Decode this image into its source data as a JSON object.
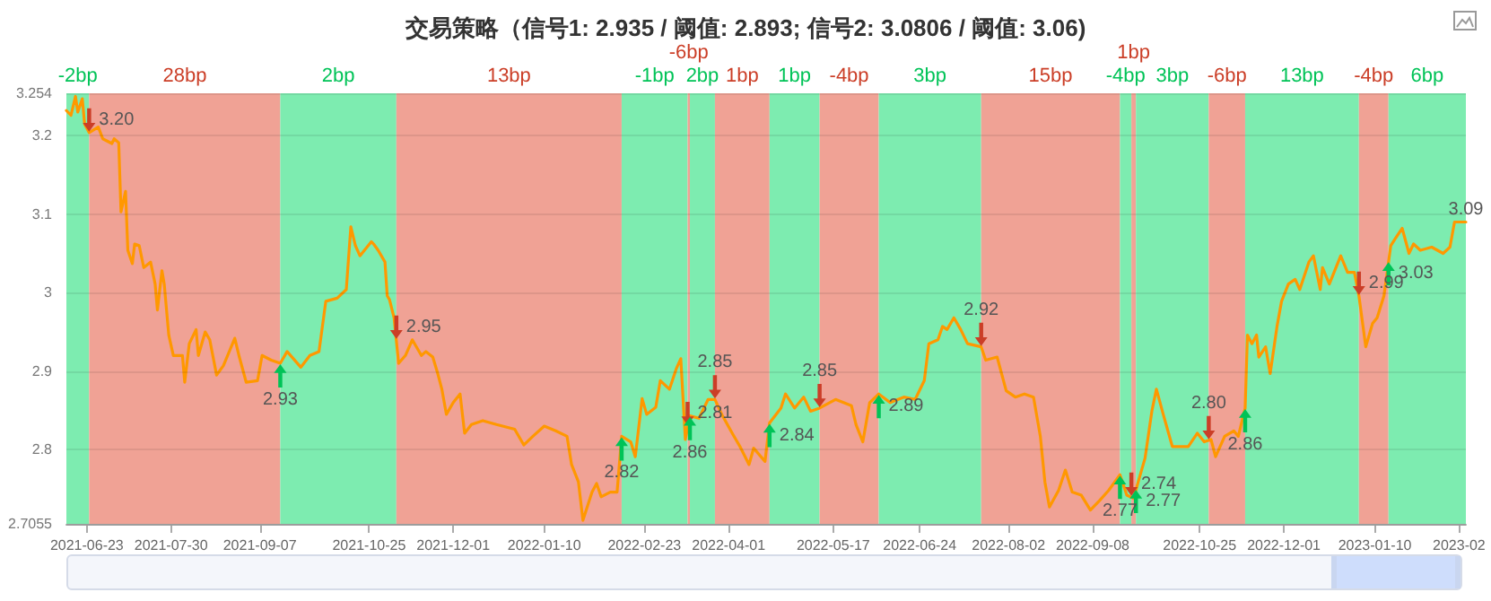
{
  "chart_data": {
    "type": "line",
    "title": "交易策略（信号1: 2.935 / 阈值: 2.893; 信号2: 3.0806 / 阈值: 3.06)",
    "x": [
      "2021-06-14",
      "2021-06-16",
      "2021-06-18",
      "2021-06-19",
      "2021-06-21",
      "2021-06-22",
      "2021-06-24",
      "2021-06-28",
      "2021-06-30",
      "2021-07-04",
      "2021-07-05",
      "2021-07-07",
      "2021-07-08",
      "2021-07-10",
      "2021-07-11",
      "2021-07-13",
      "2021-07-14",
      "2021-07-16",
      "2021-07-18",
      "2021-07-21",
      "2021-07-23",
      "2021-07-24",
      "2021-07-26",
      "2021-07-27",
      "2021-07-29",
      "2021-07-31",
      "2021-08-04",
      "2021-08-05",
      "2021-08-07",
      "2021-08-10",
      "2021-08-11",
      "2021-08-14",
      "2021-08-16",
      "2021-08-19",
      "2021-08-22",
      "2021-08-27",
      "2021-08-29",
      "2021-09-01",
      "2021-09-06",
      "2021-09-08",
      "2021-09-12",
      "2021-09-16",
      "2021-09-19",
      "2021-09-25",
      "2021-09-29",
      "2021-10-03",
      "2021-10-06",
      "2021-10-11",
      "2021-10-15",
      "2021-10-17",
      "2021-10-19",
      "2021-10-21",
      "2021-10-26",
      "2021-10-27",
      "2021-10-29",
      "2021-11-01",
      "2021-11-02",
      "2021-11-03",
      "2021-11-05",
      "2021-11-07",
      "2021-11-10",
      "2021-11-13",
      "2021-11-17",
      "2021-11-19",
      "2021-11-22",
      "2021-11-24",
      "2021-11-26",
      "2021-11-28",
      "2021-12-01",
      "2021-12-04",
      "2021-12-06",
      "2021-12-09",
      "2021-12-14",
      "2021-12-20",
      "2021-12-28",
      "2022-01-01",
      "2022-01-05",
      "2022-01-10",
      "2022-01-15",
      "2022-01-20",
      "2022-01-22",
      "2022-01-25",
      "2022-01-27",
      "2022-01-31",
      "2022-02-02",
      "2022-02-04",
      "2022-02-08",
      "2022-02-11",
      "2022-02-13",
      "2022-02-17",
      "2022-02-19",
      "2022-02-22",
      "2022-02-24",
      "2022-02-28",
      "2022-03-02",
      "2022-03-06",
      "2022-03-09",
      "2022-03-11",
      "2022-03-13",
      "2022-03-15",
      "2022-03-19",
      "2022-03-23",
      "2022-03-26",
      "2022-03-29",
      "2022-04-03",
      "2022-04-06",
      "2022-04-10",
      "2022-04-12",
      "2022-04-17",
      "2022-04-19",
      "2022-04-24",
      "2022-04-26",
      "2022-04-30",
      "2022-05-04",
      "2022-05-07",
      "2022-05-11",
      "2022-05-18",
      "2022-05-25",
      "2022-05-27",
      "2022-05-30",
      "2022-06-02",
      "2022-06-06",
      "2022-06-11",
      "2022-06-17",
      "2022-06-22",
      "2022-06-26",
      "2022-06-28",
      "2022-07-02",
      "2022-07-04",
      "2022-07-06",
      "2022-07-09",
      "2022-07-12",
      "2022-07-15",
      "2022-07-21",
      "2022-07-23",
      "2022-07-28",
      "2022-08-01",
      "2022-08-05",
      "2022-08-09",
      "2022-08-13",
      "2022-08-16",
      "2022-08-18",
      "2022-08-20",
      "2022-08-24",
      "2022-08-27",
      "2022-08-30",
      "2022-09-03",
      "2022-09-07",
      "2022-09-11",
      "2022-09-15",
      "2022-09-20",
      "2022-09-23",
      "2022-09-26",
      "2022-09-28",
      "2022-10-01",
      "2022-10-04",
      "2022-10-06",
      "2022-10-09",
      "2022-10-13",
      "2022-10-20",
      "2022-10-24",
      "2022-10-27",
      "2022-10-30",
      "2022-11-01",
      "2022-11-05",
      "2022-11-09",
      "2022-11-11",
      "2022-11-14",
      "2022-11-15",
      "2022-11-17",
      "2022-11-19",
      "2022-11-20",
      "2022-11-23",
      "2022-11-25",
      "2022-11-28",
      "2022-11-30",
      "2022-12-03",
      "2022-12-06",
      "2022-12-08",
      "2022-12-12",
      "2022-12-14",
      "2022-12-17",
      "2022-12-18",
      "2022-12-21",
      "2022-12-26",
      "2022-12-29",
      "2023-01-01",
      "2023-01-03",
      "2023-01-06",
      "2023-01-09",
      "2023-01-11",
      "2023-01-14",
      "2023-01-17",
      "2023-01-19",
      "2023-01-22",
      "2023-01-25",
      "2023-01-27",
      "2023-01-30",
      "2023-02-04",
      "2023-02-09",
      "2023-02-12",
      "2023-02-14",
      "2023-02-17",
      "2023-02-19"
    ],
    "series": [
      {
        "color": "#ff9800",
        "values": [
          3.232,
          3.226,
          3.25,
          3.23,
          3.247,
          3.215,
          3.204,
          3.211,
          3.196,
          3.19,
          3.196,
          3.191,
          3.103,
          3.129,
          3.054,
          3.037,
          3.062,
          3.06,
          3.032,
          3.039,
          3.011,
          2.978,
          3.028,
          3.011,
          2.946,
          2.92,
          2.92,
          2.886,
          2.935,
          2.953,
          2.92,
          2.95,
          2.94,
          2.895,
          2.907,
          2.942,
          2.918,
          2.886,
          2.888,
          2.92,
          2.914,
          2.91,
          2.925,
          2.905,
          2.92,
          2.925,
          2.989,
          2.993,
          3.004,
          3.084,
          3.06,
          3.047,
          3.065,
          3.062,
          3.054,
          3.039,
          2.996,
          2.991,
          2.968,
          2.91,
          2.92,
          2.94,
          2.92,
          2.925,
          2.918,
          2.899,
          2.877,
          2.845,
          2.86,
          2.871,
          2.821,
          2.832,
          2.837,
          2.832,
          2.826,
          2.806,
          2.817,
          2.83,
          2.824,
          2.817,
          2.781,
          2.759,
          2.71,
          2.746,
          2.757,
          2.74,
          2.746,
          2.746,
          2.817,
          2.81,
          2.791,
          2.865,
          2.845,
          2.854,
          2.888,
          2.877,
          2.903,
          2.916,
          2.813,
          2.843,
          2.84,
          2.864,
          2.864,
          2.845,
          2.819,
          2.804,
          2.781,
          2.802,
          2.785,
          2.834,
          2.853,
          2.871,
          2.853,
          2.867,
          2.849,
          2.853,
          2.864,
          2.856,
          2.832,
          2.81,
          2.86,
          2.871,
          2.86,
          2.867,
          2.864,
          2.888,
          2.935,
          2.94,
          2.957,
          2.953,
          2.968,
          2.953,
          2.935,
          2.931,
          2.914,
          2.918,
          2.875,
          2.867,
          2.871,
          2.867,
          2.817,
          2.759,
          2.727,
          2.748,
          2.774,
          2.746,
          2.742,
          2.723,
          2.735,
          2.748,
          2.768,
          2.742,
          2.738,
          2.759,
          2.789,
          2.849,
          2.877,
          2.845,
          2.804,
          2.804,
          2.821,
          2.81,
          2.813,
          2.791,
          2.817,
          2.824,
          2.817,
          2.853,
          2.946,
          2.935,
          2.946,
          2.918,
          2.931,
          2.897,
          2.957,
          2.989,
          3.011,
          3.017,
          3.004,
          3.039,
          3.047,
          3.004,
          3.032,
          3.011,
          3.047,
          3.026,
          3.026,
          2.996,
          2.931,
          2.961,
          2.968,
          2.996,
          3.06,
          3.069,
          3.082,
          3.05,
          3.062,
          3.054,
          3.058,
          3.05,
          3.058,
          3.09,
          3.09,
          3.09
        ]
      }
    ],
    "xlim": [
      "2021-06-14",
      "2023-02-19"
    ],
    "xticks": [
      "2021-06-23",
      "2021-07-30",
      "2021-09-07",
      "2021-10-25",
      "2021-12-01",
      "2022-01-10",
      "2022-02-23",
      "2022-04-01",
      "2022-05-17",
      "2022-06-24",
      "2022-08-02",
      "2022-09-08",
      "2022-10-25",
      "2022-12-01",
      "2023-01-10",
      {
        "value": "2023-02-16",
        "label": "2023-02"
      }
    ],
    "ylim": [
      2.7055,
      3.254
    ],
    "yticks": [
      2.7055,
      2.8,
      2.9,
      3,
      3.1,
      3.2,
      3.254
    ],
    "grid": "y",
    "marker": "none",
    "bands": [
      {
        "axis": "x",
        "from": "2021-06-14",
        "to": "2021-06-24",
        "label": "-2bp",
        "color": "#7decb0"
      },
      {
        "axis": "x",
        "from": "2021-06-24",
        "to": "2021-09-16",
        "label": "28bp",
        "color": "#f0a295"
      },
      {
        "axis": "x",
        "from": "2021-09-16",
        "to": "2021-11-06",
        "label": "2bp",
        "color": "#7decb0"
      },
      {
        "axis": "x",
        "from": "2021-11-06",
        "to": "2022-02-13",
        "label": "13bp",
        "color": "#f0a295"
      },
      {
        "axis": "x",
        "from": "2022-02-13",
        "to": "2022-03-14",
        "label": "-1bp",
        "color": "#7decb0"
      },
      {
        "axis": "x",
        "from": "2022-03-14",
        "to": "2022-03-15",
        "label": "-6bp",
        "color": "#f0a295"
      },
      {
        "axis": "x",
        "from": "2022-03-15",
        "to": "2022-03-26",
        "label": "2bp",
        "color": "#7decb0"
      },
      {
        "axis": "x",
        "from": "2022-03-26",
        "to": "2022-04-19",
        "label": "1bp",
        "color": "#f0a295"
      },
      {
        "axis": "x",
        "from": "2022-04-19",
        "to": "2022-05-11",
        "label": "1bp",
        "color": "#7decb0"
      },
      {
        "axis": "x",
        "from": "2022-05-11",
        "to": "2022-06-06",
        "label": "-4bp",
        "color": "#f0a295"
      },
      {
        "axis": "x",
        "from": "2022-06-06",
        "to": "2022-07-21",
        "label": "3bp",
        "color": "#7decb0"
      },
      {
        "axis": "x",
        "from": "2022-07-21",
        "to": "2022-09-20",
        "label": "15bp",
        "color": "#f0a295"
      },
      {
        "axis": "x",
        "from": "2022-09-20",
        "to": "2022-09-25",
        "label": "-4bp",
        "color": "#7decb0"
      },
      {
        "axis": "x",
        "from": "2022-09-25",
        "to": "2022-09-27",
        "label": "1bp",
        "color": "#f0a295"
      },
      {
        "axis": "x",
        "from": "2022-09-27",
        "to": "2022-10-29",
        "label": "3bp",
        "color": "#7decb0"
      },
      {
        "axis": "x",
        "from": "2022-10-29",
        "to": "2022-11-14",
        "label": "-6bp",
        "color": "#f0a295"
      },
      {
        "axis": "x",
        "from": "2022-11-14",
        "to": "2023-01-03",
        "label": "13bp",
        "color": "#7decb0"
      },
      {
        "axis": "x",
        "from": "2023-01-03",
        "to": "2023-01-16",
        "label": "-4bp",
        "color": "#f0a295"
      },
      {
        "axis": "x",
        "from": "2023-01-16",
        "to": "2023-02-19",
        "label": "6bp",
        "color": "#7decb0"
      }
    ],
    "annotations": [
      {
        "text": "3.20",
        "x": "2021-06-24",
        "y": 3.204
      },
      {
        "text": "2.93",
        "x": "2021-09-16",
        "y": 2.91
      },
      {
        "text": "2.95",
        "x": "2021-11-06",
        "y": 2.94
      },
      {
        "text": "2.82",
        "x": "2022-02-13",
        "y": 2.817
      },
      {
        "text": "2.81",
        "x": "2022-03-14",
        "y": 2.83
      },
      {
        "text": "2.86",
        "x": "2022-03-15",
        "y": 2.843
      },
      {
        "text": "2.85",
        "x": "2022-03-26",
        "y": 2.864
      },
      {
        "text": "2.84",
        "x": "2022-04-19",
        "y": 2.834
      },
      {
        "text": "2.85",
        "x": "2022-05-11",
        "y": 2.853
      },
      {
        "text": "2.89",
        "x": "2022-06-06",
        "y": 2.871
      },
      {
        "text": "2.92",
        "x": "2022-07-21",
        "y": 2.931
      },
      {
        "text": "2.77",
        "x": "2022-09-20",
        "y": 2.768
      },
      {
        "text": "2.74",
        "x": "2022-09-25",
        "y": 2.74
      },
      {
        "text": "2.77",
        "x": "2022-09-27",
        "y": 2.75
      },
      {
        "text": "2.80",
        "x": "2022-10-29",
        "y": 2.812
      },
      {
        "text": "2.86",
        "x": "2022-11-14",
        "y": 2.853
      },
      {
        "text": "2.99",
        "x": "2023-01-03",
        "y": 2.996
      },
      {
        "text": "3.03",
        "x": "2023-01-16",
        "y": 3.04
      },
      {
        "text": "3.09",
        "x": "2023-02-19",
        "y": 3.09
      }
    ]
  }
}
